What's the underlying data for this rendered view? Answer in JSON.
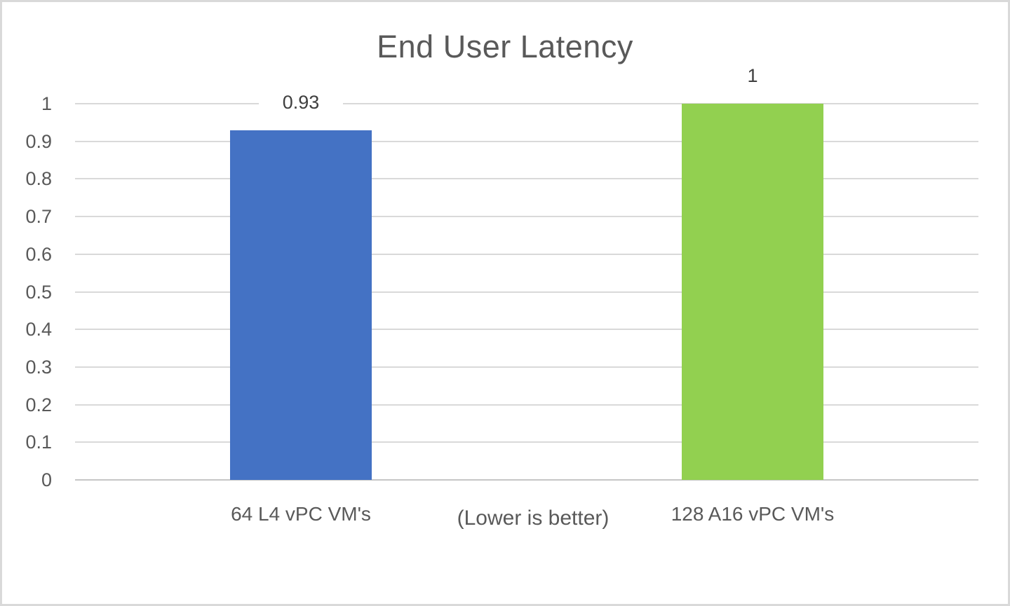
{
  "chart_data": {
    "type": "bar",
    "title": "End User Latency",
    "annotation": "(Lower is better)",
    "categories": [
      "64 L4 vPC VM's",
      "128 A16 vPC VM's"
    ],
    "values": [
      0.93,
      1
    ],
    "data_labels": [
      "0.93",
      "1"
    ],
    "bar_colors": [
      "#4472C4",
      "#92D050"
    ],
    "ylim": [
      0,
      1
    ],
    "yticks": [
      "0",
      "0.1",
      "0.2",
      "0.3",
      "0.4",
      "0.5",
      "0.6",
      "0.7",
      "0.8",
      "0.9",
      "1"
    ],
    "grid": true,
    "legend": "none",
    "xlabel": "",
    "ylabel": ""
  },
  "colors": {
    "gridline": "#D9D9D9",
    "axis_line": "#C6C6C6",
    "text": "#595959",
    "data_label": "#3F3F3F",
    "background": "#FFFFFF",
    "frame_border": "#D9D9D9"
  }
}
